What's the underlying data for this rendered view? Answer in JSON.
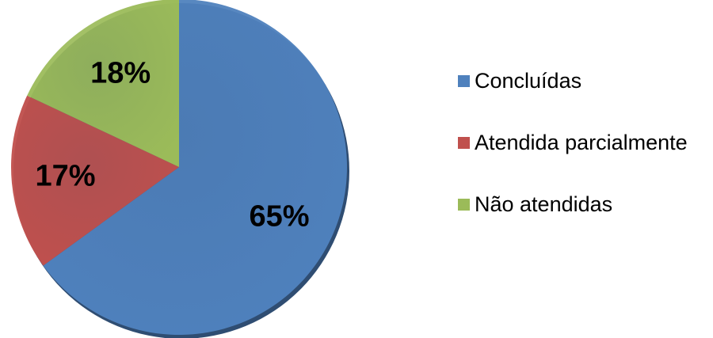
{
  "chart_data": {
    "type": "pie",
    "categories": [
      "Concluídas",
      "Atendida parcialmente",
      "Não atendidas"
    ],
    "values": [
      65,
      17,
      18
    ],
    "labels": [
      "65%",
      "17%",
      "18%"
    ],
    "colors": [
      "#4F81BD",
      "#C0504D",
      "#9BBB59"
    ],
    "start_angle_deg": 0,
    "direction": "clockwise",
    "legend_position": "right",
    "title": ""
  }
}
